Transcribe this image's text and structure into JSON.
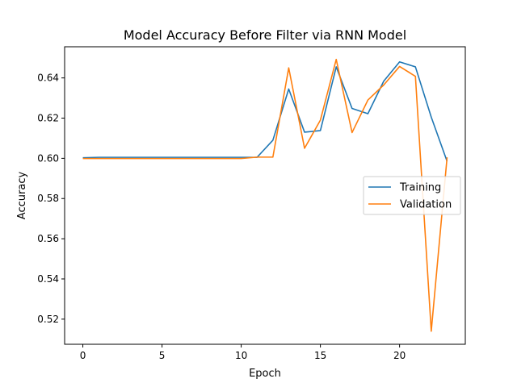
{
  "chart_data": {
    "type": "line",
    "title": "Model Accuracy Before Filter via RNN Model",
    "xlabel": "Epoch",
    "ylabel": "Accuracy",
    "xlim": [
      -1.15,
      24.15
    ],
    "ylim": [
      0.5075,
      0.6555
    ],
    "xticks": [
      0,
      5,
      10,
      15,
      20
    ],
    "yticks": [
      0.52,
      0.54,
      0.56,
      0.58,
      0.6,
      0.62,
      0.64
    ],
    "grid": false,
    "legend_position": "center-right",
    "x": [
      0,
      1,
      2,
      3,
      4,
      5,
      6,
      7,
      8,
      9,
      10,
      11,
      12,
      13,
      14,
      15,
      16,
      17,
      18,
      19,
      20,
      21,
      22,
      23
    ],
    "series": [
      {
        "name": "Training",
        "color": "#1f77b4",
        "values": [
          0.6003,
          0.6005,
          0.6005,
          0.6005,
          0.6005,
          0.6005,
          0.6005,
          0.6005,
          0.6005,
          0.6005,
          0.6005,
          0.6005,
          0.609,
          0.6345,
          0.613,
          0.6138,
          0.6455,
          0.6248,
          0.6222,
          0.6384,
          0.648,
          0.6455,
          0.6205,
          0.5985
        ]
      },
      {
        "name": "Validation",
        "color": "#ff7f0e",
        "values": [
          0.5999,
          0.5999,
          0.5999,
          0.5999,
          0.5999,
          0.5999,
          0.5999,
          0.5999,
          0.5999,
          0.5999,
          0.5999,
          0.6006,
          0.6006,
          0.645,
          0.605,
          0.619,
          0.6492,
          0.6128,
          0.629,
          0.6365,
          0.6457,
          0.6408,
          0.514,
          0.6005
        ]
      }
    ]
  }
}
